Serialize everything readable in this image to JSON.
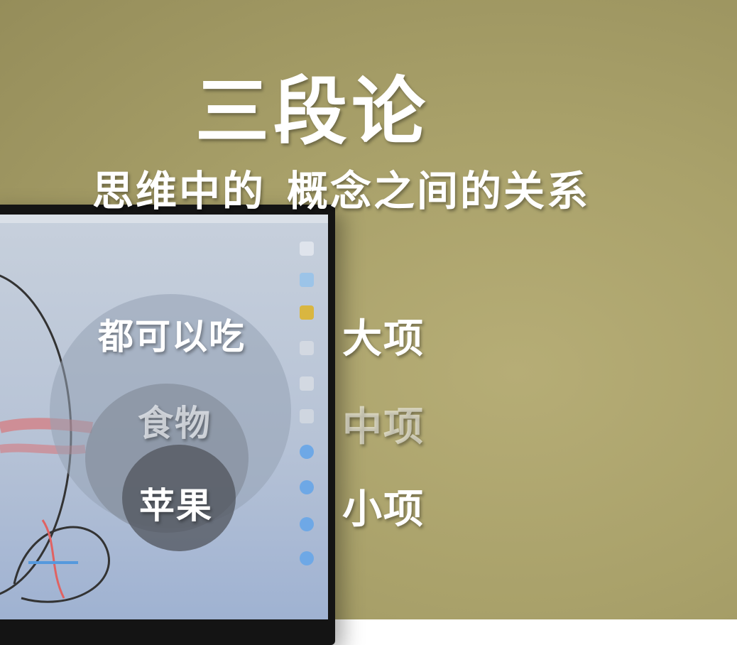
{
  "title": "三段论",
  "subtitle": {
    "part1": "思维中的",
    "part2": "概念之间的关系"
  },
  "diagram": {
    "outer_circle_text": "都可以吃",
    "middle_circle_text": "食物",
    "inner_circle_text": "苹果"
  },
  "labels": {
    "major_term": "大项",
    "middle_term": "中项",
    "minor_term": "小项"
  },
  "colors": {
    "wall": "#a9a16a",
    "screen": "#b7c3d6",
    "inner_circle": "#50545c",
    "text": "#ffffff"
  }
}
